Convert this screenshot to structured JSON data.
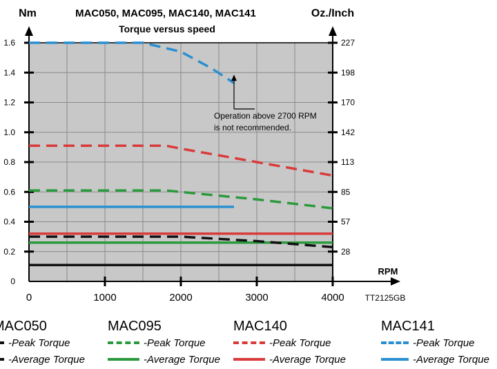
{
  "chart_data": {
    "type": "line",
    "title": "MAC050, MAC095, MAC140, MAC141",
    "subtitle": "Torque versus speed",
    "ylabel_left": "Nm",
    "ylabel_right": "Oz./Inch",
    "xlabel": "RPM",
    "xlim": [
      0,
      4000
    ],
    "ylim": [
      0,
      1.6
    ],
    "x_ticks": [
      "0",
      "1000",
      "2000",
      "3000",
      "4000"
    ],
    "y_ticks_left": [
      "0",
      "0.2",
      "0.4",
      "0.6",
      "0.8",
      "1.0",
      "1.2",
      "1.4",
      "1.6"
    ],
    "y_ticks_right": [
      {
        "label": "28",
        "y": 0.2
      },
      {
        "label": "57",
        "y": 0.4
      },
      {
        "label": "85",
        "y": 0.6
      },
      {
        "label": "113",
        "y": 0.8
      },
      {
        "label": "142",
        "y": 1.0
      },
      {
        "label": "170",
        "y": 1.2
      },
      {
        "label": "198",
        "y": 1.4
      },
      {
        "label": "227",
        "y": 1.6
      }
    ],
    "annotation": {
      "lines": [
        "Operation above 2700 RPM",
        "is not recommended."
      ],
      "x": 2700,
      "y": 1.4
    },
    "reference_code": "TT2125GB",
    "grid": true,
    "series": [
      {
        "name": "MAC141 Peak Torque",
        "color": "#2a8fd0",
        "dashed": true,
        "points": [
          [
            0,
            1.6
          ],
          [
            1500,
            1.6
          ],
          [
            2000,
            1.54
          ],
          [
            2400,
            1.43
          ],
          [
            2700,
            1.33
          ]
        ]
      },
      {
        "name": "MAC141 Average Torque",
        "color": "#2a8fd0",
        "dashed": false,
        "points": [
          [
            0,
            0.5
          ],
          [
            2700,
            0.5
          ]
        ]
      },
      {
        "name": "MAC140 Peak Torque",
        "color": "#d93a3a",
        "dashed": true,
        "points": [
          [
            0,
            0.91
          ],
          [
            1800,
            0.91
          ],
          [
            2000,
            0.89
          ],
          [
            3000,
            0.8
          ],
          [
            4000,
            0.71
          ]
        ]
      },
      {
        "name": "MAC140 Average Torque",
        "color": "#d93a3a",
        "dashed": false,
        "points": [
          [
            0,
            0.32
          ],
          [
            4000,
            0.32
          ]
        ]
      },
      {
        "name": "MAC095 Peak Torque",
        "color": "#2a9a3c",
        "dashed": true,
        "points": [
          [
            0,
            0.61
          ],
          [
            1800,
            0.61
          ],
          [
            2000,
            0.6
          ],
          [
            3000,
            0.55
          ],
          [
            4000,
            0.49
          ]
        ]
      },
      {
        "name": "MAC095 Average Torque",
        "color": "#2a9a3c",
        "dashed": false,
        "points": [
          [
            0,
            0.26
          ],
          [
            4000,
            0.26
          ]
        ]
      },
      {
        "name": "MAC050 Peak Torque",
        "color": "#111111",
        "dashed": true,
        "points": [
          [
            0,
            0.3
          ],
          [
            2000,
            0.3
          ],
          [
            3000,
            0.27
          ],
          [
            4000,
            0.23
          ]
        ]
      },
      {
        "name": "MAC050 Average Torque",
        "color": "#111111",
        "dashed": false,
        "points": [
          [
            0,
            0.11
          ],
          [
            4000,
            0.11
          ]
        ]
      }
    ]
  },
  "legend": {
    "groups": [
      {
        "title": "MAC050",
        "color": "#111111",
        "peak_label": "-Peak Torque",
        "average_label": "-Average Torque"
      },
      {
        "title": "MAC095",
        "color": "#2a9a3c",
        "peak_label": "-Peak Torque",
        "average_label": "-Average Torque"
      },
      {
        "title": "MAC140",
        "color": "#d93a3a",
        "peak_label": "-Peak Torque",
        "average_label": "-Average Torque"
      },
      {
        "title": "MAC141",
        "color": "#2a8fd0",
        "peak_label": "-Peak Torque",
        "average_label": "-Average Torque"
      }
    ]
  },
  "colors": {
    "plot_background": "#c8c8c8",
    "grid": "#8a8a8a",
    "axis": "#000000"
  }
}
